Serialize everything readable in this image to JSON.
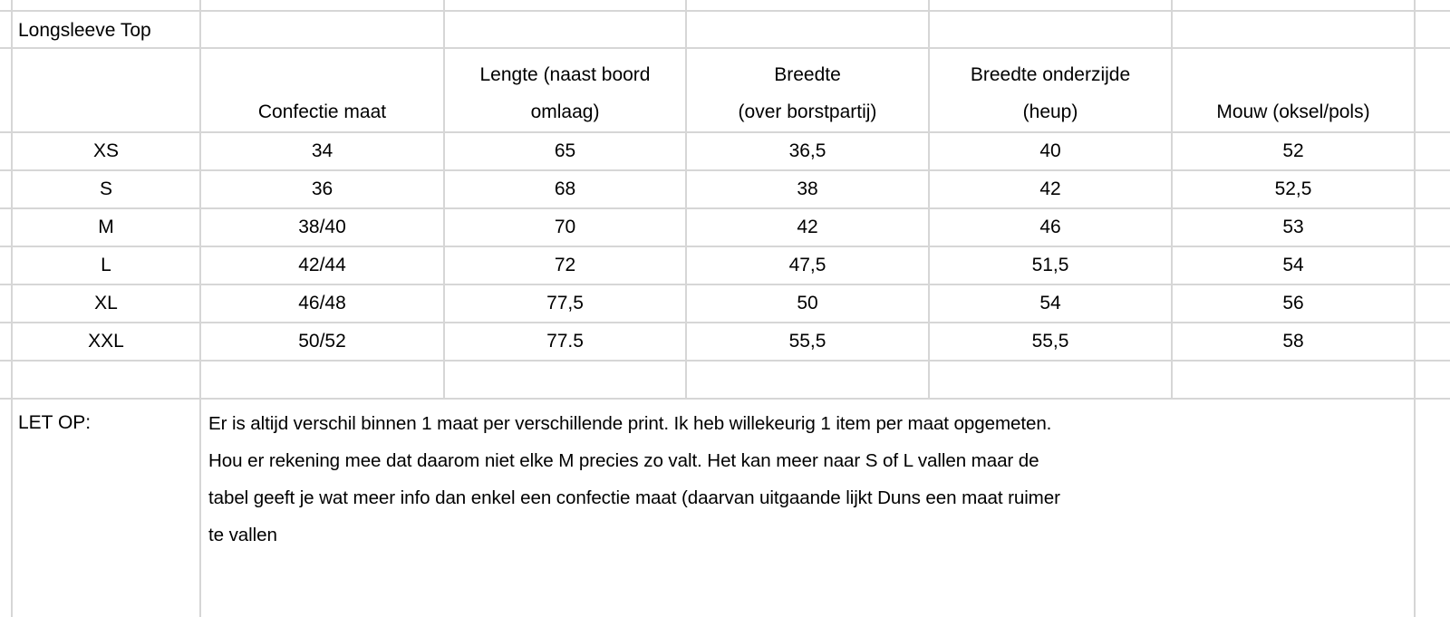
{
  "title": "Longsleeve Top",
  "headers": [
    {
      "line1": "",
      "line2": "Confectie maat"
    },
    {
      "line1": "Lengte (naast boord",
      "line2": "omlaag)"
    },
    {
      "line1": "Breedte",
      "line2": "(over borstpartij)"
    },
    {
      "line1": "Breedte onderzijde",
      "line2": "(heup)"
    },
    {
      "line1": "",
      "line2": "Mouw (oksel/pols)"
    }
  ],
  "rows": [
    {
      "size": "XS",
      "cells": [
        "34",
        "65",
        "36,5",
        "40",
        "52"
      ]
    },
    {
      "size": "S",
      "cells": [
        "36",
        "68",
        "38",
        "42",
        "52,5"
      ]
    },
    {
      "size": "M",
      "cells": [
        "38/40",
        "70",
        "42",
        "46",
        "53"
      ]
    },
    {
      "size": "L",
      "cells": [
        "42/44",
        "72",
        "47,5",
        "51,5",
        "54"
      ]
    },
    {
      "size": "XL",
      "cells": [
        "46/48",
        "77,5",
        "50",
        "54",
        "56"
      ]
    },
    {
      "size": "XXL",
      "cells": [
        "50/52",
        "77.5",
        "55,5",
        "55,5",
        "58"
      ]
    }
  ],
  "note": {
    "label": "LET OP:",
    "lines": [
      "Er is altijd verschil binnen 1 maat per verschillende print. Ik heb willekeurig 1 item per maat opgemeten.",
      "Hou er rekening mee dat daarom niet elke M precies zo valt. Het kan meer naar S of L vallen maar de",
      "tabel geeft je wat meer info dan enkel een confectie maat (daarvan uitgaande lijkt Duns een maat ruimer",
      "te vallen"
    ]
  }
}
